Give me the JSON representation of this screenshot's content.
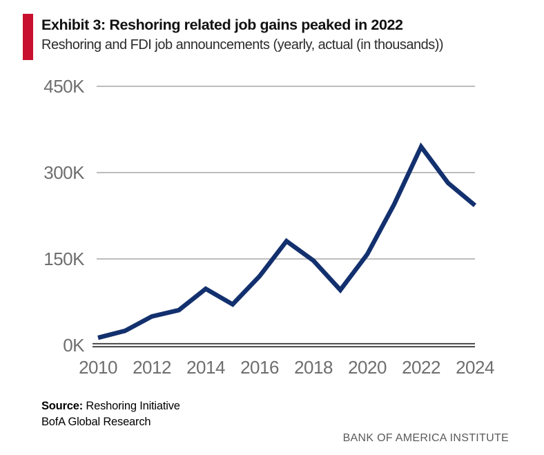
{
  "exhibit": {
    "title": "Exhibit 3: Reshoring related job gains peaked in 2022",
    "subtitle": "Reshoring and FDI job announcements (yearly, actual (in thousands))"
  },
  "footer": {
    "source_label": "Source:",
    "source_value": " Reshoring Initiative",
    "source_line2": "BofA Global Research",
    "institute": "BANK OF AMERICA INSTITUTE"
  },
  "colors": {
    "accent_red": "#C8102E",
    "line_navy": "#13306E",
    "gridline": "#BCBCBC",
    "zero_axis": "#3A3A3A",
    "tick_label": "#6E6E6E"
  },
  "chart_data": {
    "type": "line",
    "title": "Exhibit 3: Reshoring related job gains peaked in 2022",
    "subtitle": "Reshoring and FDI job announcements (yearly, actual (in thousands))",
    "series": [
      {
        "name": "Reshoring and FDI job announcements (thousands)",
        "x": [
          2010,
          2011,
          2012,
          2013,
          2014,
          2015,
          2016,
          2017,
          2018,
          2019,
          2020,
          2021,
          2022,
          2023,
          2024
        ],
        "values": [
          13,
          25,
          50,
          61,
          98,
          71,
          120,
          181,
          147,
          96,
          158,
          245,
          345,
          282,
          243
        ]
      }
    ],
    "xlabel": "",
    "ylabel": "",
    "ylim": [
      0,
      450
    ],
    "yticks": [
      {
        "value": 0,
        "label": "0K"
      },
      {
        "value": 150,
        "label": "150K"
      },
      {
        "value": 300,
        "label": "300K"
      },
      {
        "value": 450,
        "label": "450K"
      }
    ],
    "xticks": [
      {
        "value": 2010,
        "label": "2010"
      },
      {
        "value": 2012,
        "label": "2012"
      },
      {
        "value": 2014,
        "label": "2014"
      },
      {
        "value": 2016,
        "label": "2016"
      },
      {
        "value": 2018,
        "label": "2018"
      },
      {
        "value": 2020,
        "label": "2020"
      },
      {
        "value": 2022,
        "label": "2022"
      },
      {
        "value": 2024,
        "label": "2024"
      }
    ],
    "grid": "horizontal",
    "legend": "none"
  }
}
